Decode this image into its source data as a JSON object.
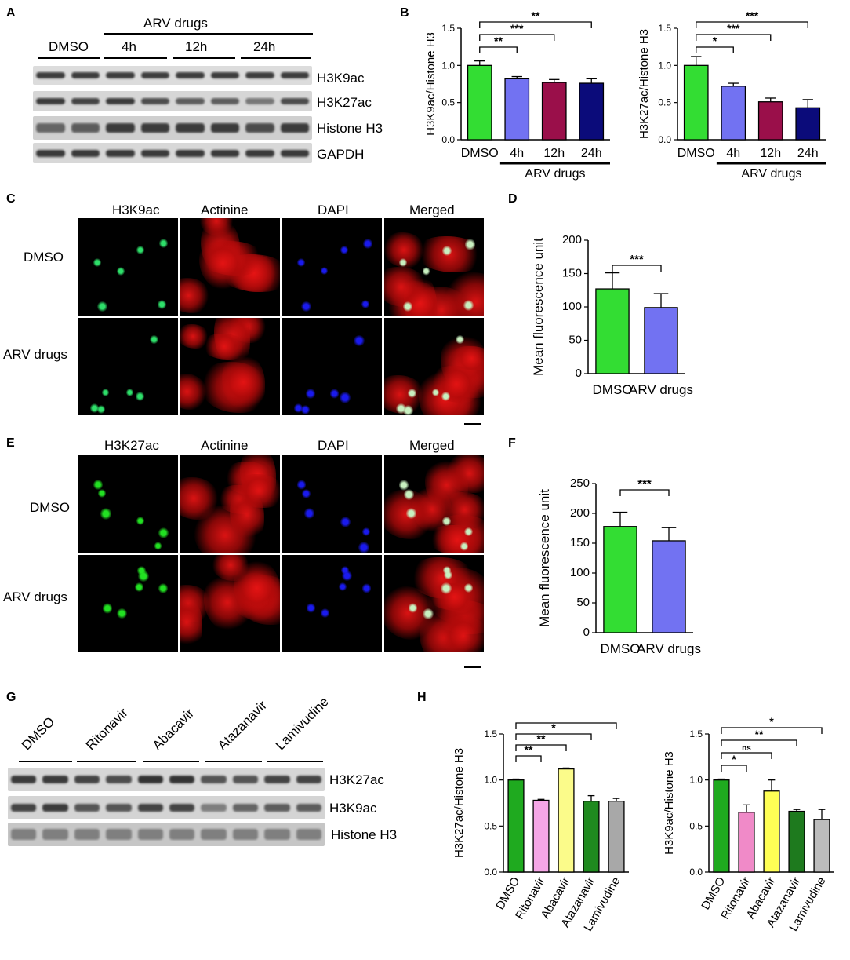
{
  "panels": {
    "A": {
      "letter": "A",
      "group_label": "ARV drugs",
      "lane_labels": [
        "DMSO",
        "4h",
        "12h",
        "24h"
      ],
      "bands": [
        "H3K9ac",
        "H3K27ac",
        "Histone H3",
        "GAPDH"
      ]
    },
    "B": {
      "letter": "B"
    },
    "C": {
      "letter": "C",
      "columns": [
        "H3K9ac",
        "Actinine",
        "DAPI",
        "Merged"
      ],
      "rows": [
        "DMSO",
        "ARV drugs"
      ]
    },
    "D": {
      "letter": "D"
    },
    "E": {
      "letter": "E",
      "columns": [
        "H3K27ac",
        "Actinine",
        "DAPI",
        "Merged"
      ],
      "rows": [
        "DMSO",
        "ARV drugs"
      ]
    },
    "F": {
      "letter": "F"
    },
    "G": {
      "letter": "G",
      "lane_labels": [
        "DMSO",
        "Ritonavir",
        "Abacavir",
        "Atazanavir",
        "Lamivudine"
      ],
      "bands": [
        "H3K27ac",
        "H3K9ac",
        "Histone H3"
      ]
    },
    "H": {
      "letter": "H"
    }
  },
  "colors": {
    "green": "#33dd33",
    "blue": "#7272f2",
    "crimson": "#9a0f4a",
    "navy": "#0b0b7a",
    "pink": "#f5a6e6",
    "yellow": "#fbfb8a",
    "dark_green": "#1f8a1f",
    "grey": "#a8a8a8",
    "pink2": "#f08ac8",
    "yellow2": "#ffff55",
    "dark_green2": "#1e7a1e",
    "grey2": "#bcbcbc"
  },
  "chart_data": [
    {
      "id": "B1",
      "type": "bar",
      "ylabel": "H3K9ac/Histone H3",
      "categories": [
        "DMSO",
        "4h",
        "12h",
        "24h"
      ],
      "values": [
        1.0,
        0.82,
        0.77,
        0.76
      ],
      "errors": [
        0.06,
        0.03,
        0.04,
        0.06
      ],
      "colors": [
        "#33dd33",
        "#7272f2",
        "#9a0f4a",
        "#0b0b7a"
      ],
      "ylim": [
        0,
        1.5
      ],
      "yticks": [
        "0.0",
        "0.5",
        "1.0",
        "1.5"
      ],
      "group_label": "ARV drugs",
      "significance": [
        {
          "from": 0,
          "to": 1,
          "label": "**"
        },
        {
          "from": 0,
          "to": 2,
          "label": "***"
        },
        {
          "from": 0,
          "to": 3,
          "label": "**"
        }
      ]
    },
    {
      "id": "B2",
      "type": "bar",
      "ylabel": "H3K27ac/Histone H3",
      "categories": [
        "DMSO",
        "4h",
        "12h",
        "24h"
      ],
      "values": [
        1.0,
        0.72,
        0.51,
        0.43
      ],
      "errors": [
        0.12,
        0.04,
        0.05,
        0.11
      ],
      "colors": [
        "#33dd33",
        "#7272f2",
        "#9a0f4a",
        "#0b0b7a"
      ],
      "ylim": [
        0,
        1.5
      ],
      "yticks": [
        "0.0",
        "0.5",
        "1.0",
        "1.5"
      ],
      "group_label": "ARV drugs",
      "significance": [
        {
          "from": 0,
          "to": 1,
          "label": "*"
        },
        {
          "from": 0,
          "to": 2,
          "label": "***"
        },
        {
          "from": 0,
          "to": 3,
          "label": "***"
        }
      ]
    },
    {
      "id": "D",
      "type": "bar",
      "ylabel": "Mean fluorescence unit",
      "categories": [
        "DMSO",
        "ARV drugs"
      ],
      "values": [
        127,
        99
      ],
      "errors": [
        24,
        21
      ],
      "colors": [
        "#33dd33",
        "#7272f2"
      ],
      "ylim": [
        0,
        200
      ],
      "yticks": [
        "0",
        "50",
        "100",
        "150",
        "200"
      ],
      "significance": [
        {
          "from": 0,
          "to": 1,
          "label": "***"
        }
      ]
    },
    {
      "id": "F",
      "type": "bar",
      "ylabel": "Mean fluorescence unit",
      "categories": [
        "DMSO",
        "ARV drugs"
      ],
      "values": [
        178,
        154
      ],
      "errors": [
        24,
        22
      ],
      "colors": [
        "#33dd33",
        "#7272f2"
      ],
      "ylim": [
        0,
        250
      ],
      "yticks": [
        "0",
        "50",
        "100",
        "150",
        "200",
        "250"
      ],
      "significance": [
        {
          "from": 0,
          "to": 1,
          "label": "***"
        }
      ]
    },
    {
      "id": "H1",
      "type": "bar",
      "ylabel": "H3K27ac/Histone H3",
      "categories": [
        "DMSO",
        "Ritonavir",
        "Abacavir",
        "Atazanavir",
        "Lamivudine"
      ],
      "values": [
        1.0,
        0.78,
        1.12,
        0.77,
        0.77
      ],
      "errors": [
        0.01,
        0.01,
        0.01,
        0.06,
        0.03
      ],
      "colors": [
        "#1faa1f",
        "#f5a6e6",
        "#fbfb8a",
        "#1f8a1f",
        "#a8a8a8"
      ],
      "ylim": [
        0,
        1.5
      ],
      "yticks": [
        "0.0",
        "0.5",
        "1.0",
        "1.5"
      ],
      "significance": [
        {
          "from": 0,
          "to": 1,
          "label": "**"
        },
        {
          "from": 0,
          "to": 2,
          "label": "**"
        },
        {
          "from": 0,
          "to": 3,
          "label": "*"
        },
        {
          "from": 0,
          "to": 4,
          "label": ""
        }
      ]
    },
    {
      "id": "H2",
      "type": "bar",
      "ylabel": "H3K9ac/Histone H3",
      "categories": [
        "DMSO",
        "Ritonavir",
        "Abacavir",
        "Atazanavir",
        "Lamivudine"
      ],
      "values": [
        1.0,
        0.65,
        0.88,
        0.66,
        0.57
      ],
      "errors": [
        0.01,
        0.08,
        0.12,
        0.02,
        0.11
      ],
      "colors": [
        "#1faa1f",
        "#f08ac8",
        "#ffff55",
        "#1e7a1e",
        "#bcbcbc"
      ],
      "ylim": [
        0,
        1.5
      ],
      "yticks": [
        "0.0",
        "0.5",
        "1.0",
        "1.5"
      ],
      "significance": [
        {
          "from": 0,
          "to": 1,
          "label": "*"
        },
        {
          "from": 0,
          "to": 2,
          "label": "ns"
        },
        {
          "from": 0,
          "to": 3,
          "label": "**"
        },
        {
          "from": 0,
          "to": 4,
          "label": "*"
        }
      ]
    }
  ]
}
